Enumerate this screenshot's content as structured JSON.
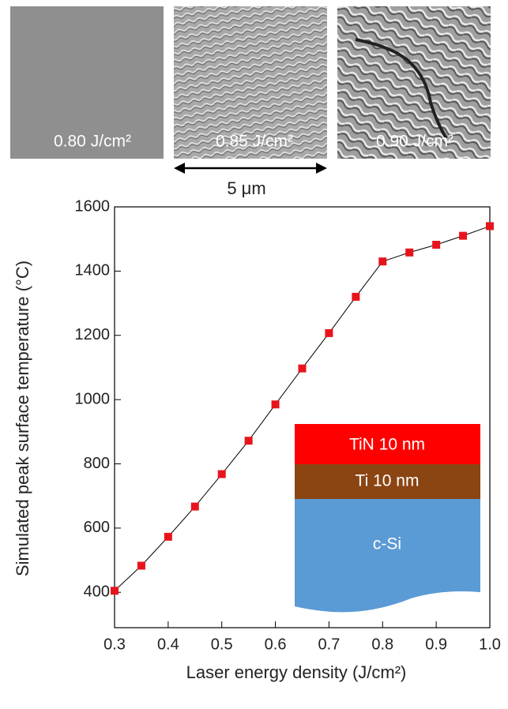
{
  "images": {
    "labels": [
      "0.80 J/cm²",
      "0.85 J/cm²",
      "0.90 J/cm²"
    ],
    "scale_bar": "5 μm"
  },
  "chart_data": {
    "type": "line",
    "x_label": "Laser energy density (J/cm²)",
    "y_label": "Simulated peak surface temperature (°C)",
    "x": [
      0.3,
      0.35,
      0.4,
      0.45,
      0.5,
      0.55,
      0.6,
      0.65,
      0.7,
      0.75,
      0.8,
      0.85,
      0.9,
      0.95,
      1.0
    ],
    "series": [
      {
        "color": "#e8141c",
        "values": [
          405,
          483,
          573,
          667,
          768,
          872,
          985,
          1097,
          1207,
          1320,
          1430,
          1458,
          1482,
          1510,
          1540
        ]
      }
    ],
    "xlim": [
      0.3,
      1.0
    ],
    "ylim": [
      290,
      1600
    ],
    "xticks": [
      0.3,
      0.4,
      0.5,
      0.6,
      0.7,
      0.8,
      0.9,
      {
        "value": 1.0,
        "label": "1.0"
      }
    ],
    "yticks": [
      400,
      600,
      800,
      1000,
      1200,
      1400,
      1600
    ],
    "inset_layers": [
      "TiN 10 nm",
      "Ti 10 nm",
      "c-Si"
    ]
  }
}
